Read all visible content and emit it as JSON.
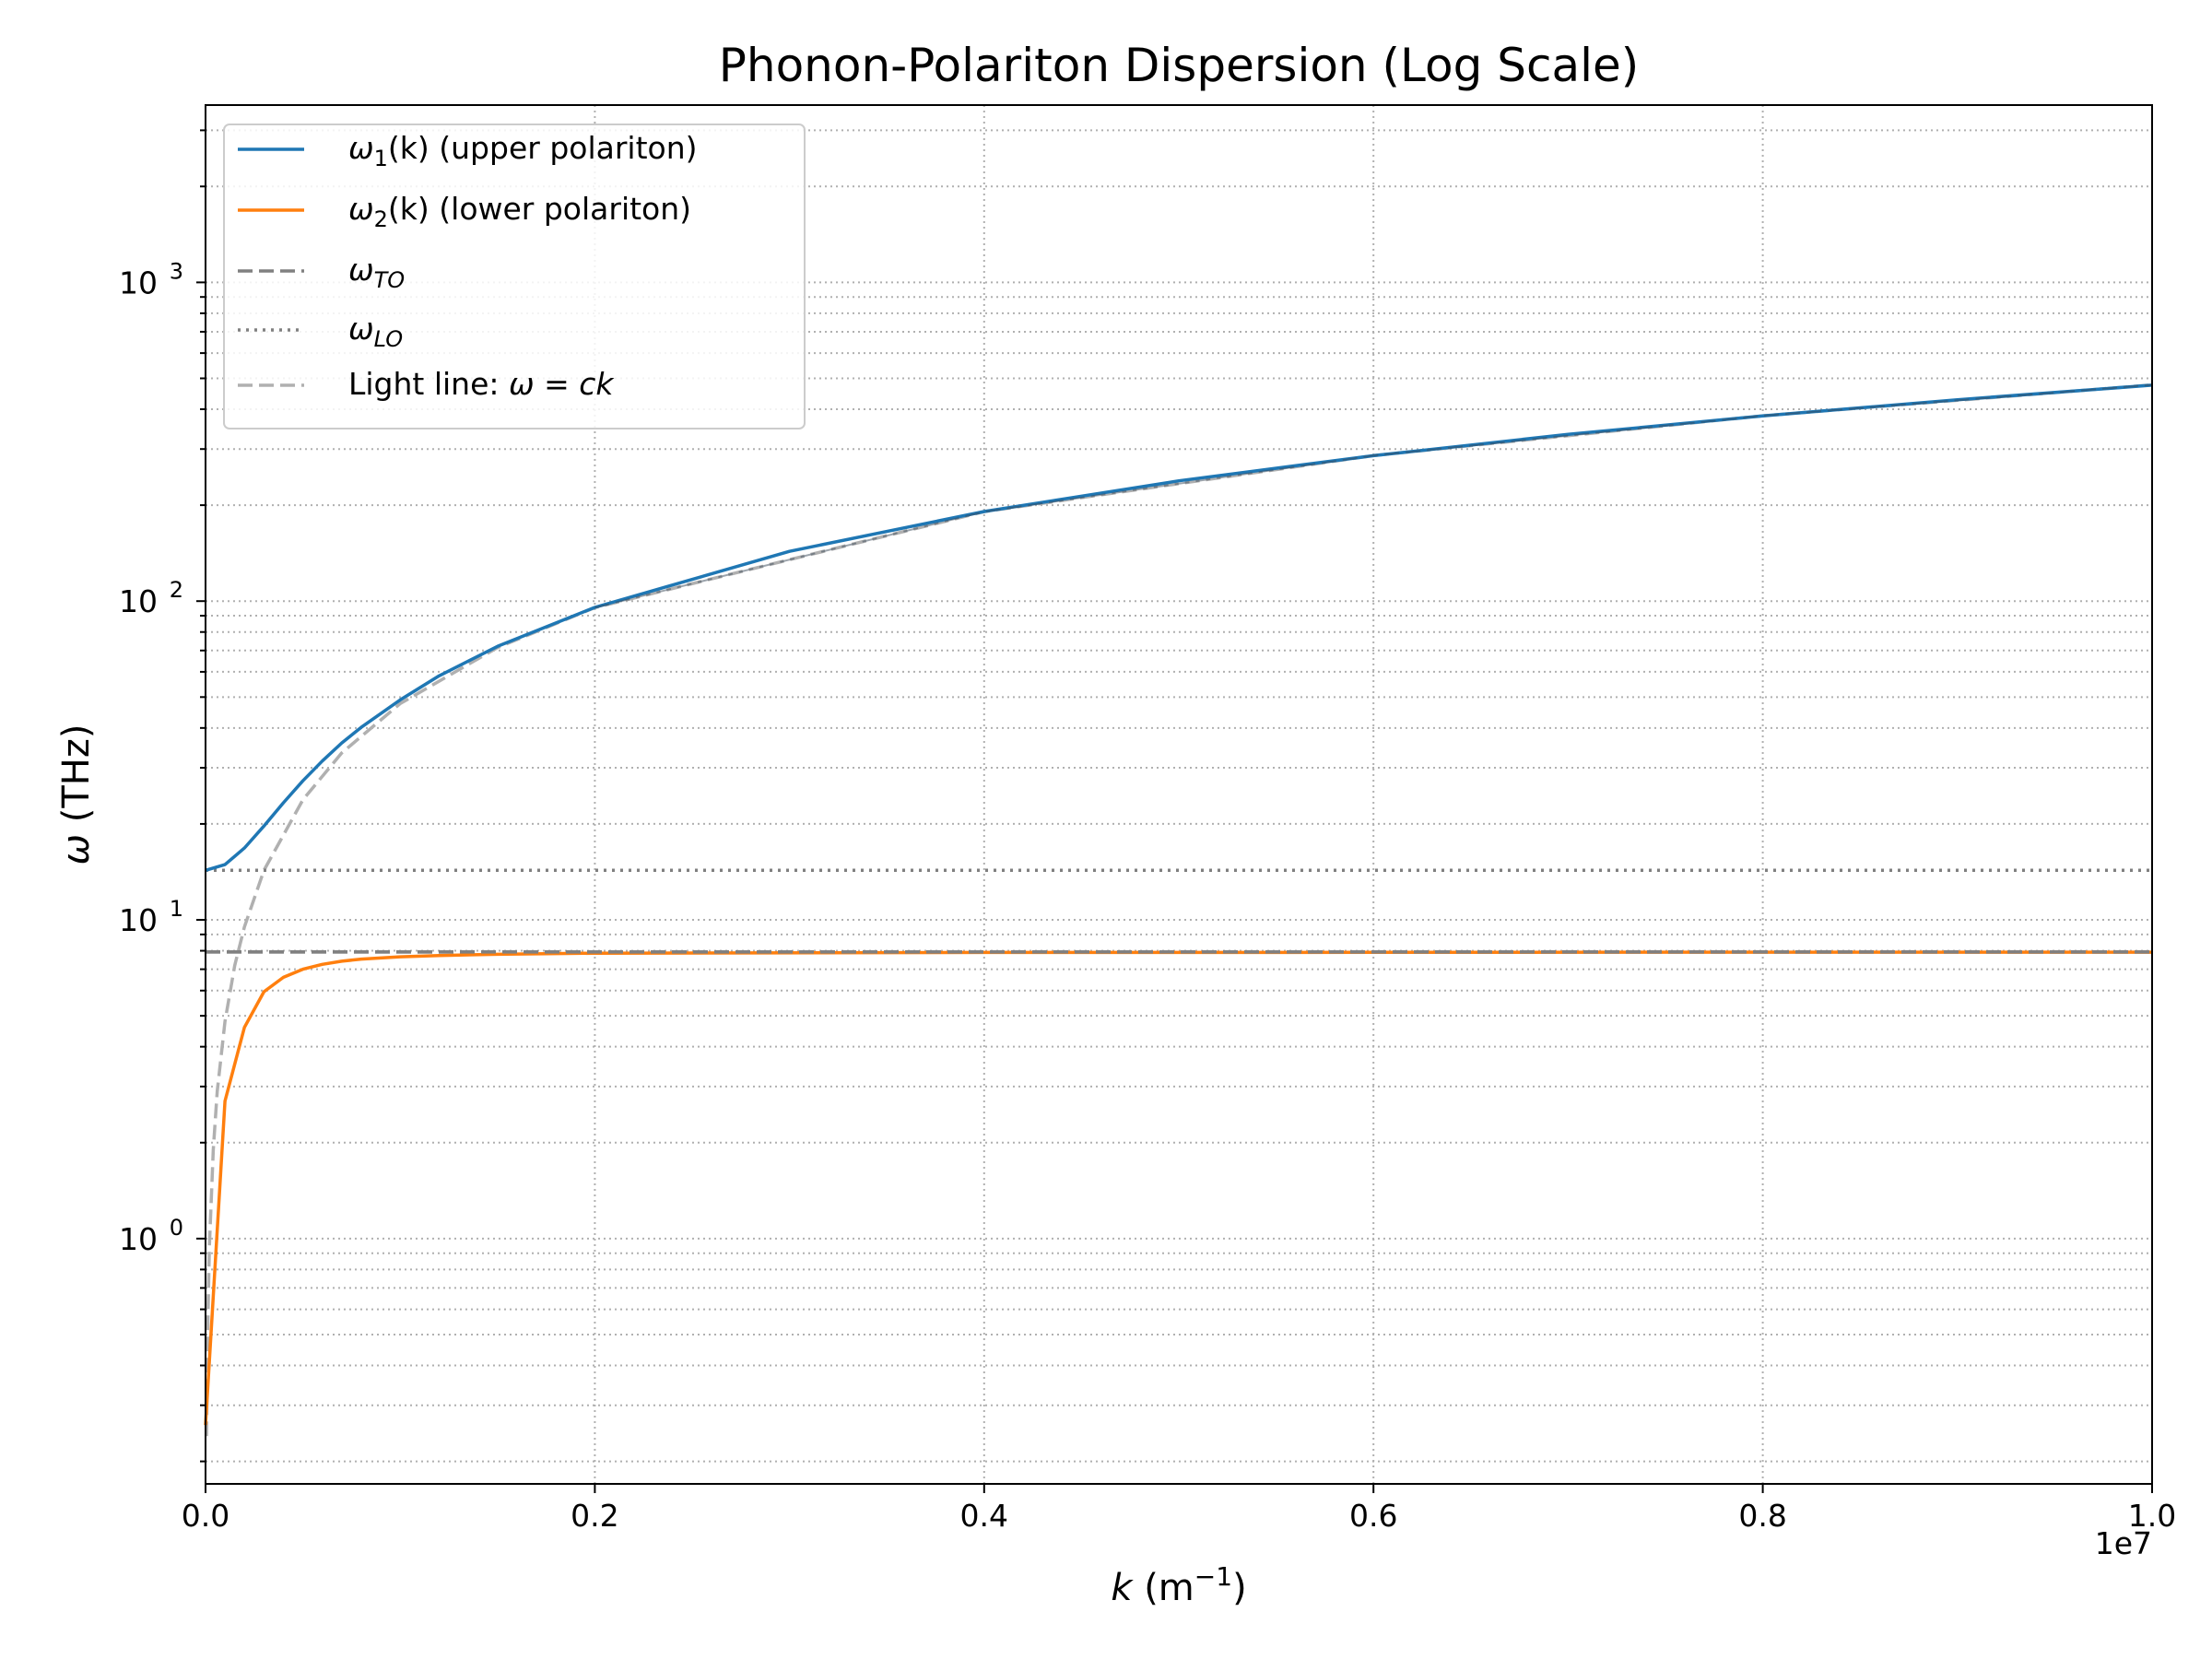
{
  "chart_data": {
    "type": "line",
    "title": "Phonon-Polariton Dispersion (Log Scale)",
    "xlabel": {
      "symbol": "k",
      "text": " (m",
      "exp": "−1",
      "close": ")"
    },
    "ylabel": {
      "symbol": "ω",
      "text": " (THz)"
    },
    "x_multiplier": "1e7",
    "xscale": "linear",
    "yscale": "log",
    "xlim": [
      0,
      10000000
    ],
    "ylim": [
      0.17,
      3600
    ],
    "grid": {
      "enabled": true,
      "style": "dotted",
      "minor": true
    },
    "legend_position": "upper-left",
    "xticks": [
      {
        "value": 0,
        "label": "0.0"
      },
      {
        "value": 2000000,
        "label": "0.2"
      },
      {
        "value": 4000000,
        "label": "0.4"
      },
      {
        "value": 6000000,
        "label": "0.6"
      },
      {
        "value": 8000000,
        "label": "0.8"
      },
      {
        "value": 10000000,
        "label": "1.0"
      }
    ],
    "yticks": [
      {
        "value": 1,
        "base": "10",
        "exp": "0"
      },
      {
        "value": 10,
        "base": "10",
        "exp": "1"
      },
      {
        "value": 100,
        "base": "10",
        "exp": "2"
      },
      {
        "value": 1000,
        "base": "10",
        "exp": "3"
      }
    ],
    "series": [
      {
        "name": "ω₁(k) (upper polariton)",
        "legend": {
          "sym": "ω",
          "sub": "1",
          "rest": "(k) (upper polariton)"
        },
        "color": "#1f77b4",
        "style": "solid",
        "x": [
          0,
          100000,
          200000,
          300000,
          400000,
          500000,
          600000,
          700000,
          800000,
          1000000,
          1200000,
          1500000,
          2000000,
          3000000,
          4000000,
          5000000,
          6000000,
          7000000,
          8000000,
          9000000,
          10000000
        ],
        "y": [
          14.3,
          14.9,
          16.8,
          19.7,
          23.3,
          27.3,
          31.5,
          35.9,
          40.2,
          49.0,
          58.3,
          72.1,
          95.6,
          143.3,
          191.0,
          238.5,
          286.0,
          333.5,
          381.0,
          428.5,
          476.0
        ]
      },
      {
        "name": "ω₂(k) (lower polariton)",
        "legend": {
          "sym": "ω",
          "sub": "2",
          "rest": "(k) (lower polariton)"
        },
        "color": "#ff7f0e",
        "style": "solid",
        "x": [
          0,
          100000,
          200000,
          300000,
          400000,
          500000,
          600000,
          700000,
          800000,
          1000000,
          1200000,
          1500000,
          2000000,
          4000000,
          6000000,
          8000000,
          10000000
        ],
        "y": [
          0.26,
          2.7,
          4.6,
          5.95,
          6.6,
          7.0,
          7.25,
          7.42,
          7.53,
          7.66,
          7.73,
          7.8,
          7.86,
          7.9,
          7.91,
          7.92,
          7.92
        ]
      },
      {
        "name": "ωTO",
        "legend": {
          "sym": "ω",
          "sub": "TO",
          "rest": ""
        },
        "color": "#808080",
        "style": "dashed",
        "x": [
          0,
          10000000
        ],
        "y": [
          7.93,
          7.93
        ]
      },
      {
        "name": "ωLO",
        "legend": {
          "sym": "ω",
          "sub": "LO",
          "rest": ""
        },
        "color": "#808080",
        "style": "dotted",
        "x": [
          0,
          10000000
        ],
        "y": [
          14.3,
          14.3
        ]
      },
      {
        "name": "Light line: ω = ck",
        "legend": {
          "sym": "",
          "sub": "",
          "rest": "",
          "text": "Light line: ",
          "math": "ω = ck"
        },
        "color": "#b0b0b0",
        "style": "dashed",
        "x": [
          5000,
          10000,
          20000,
          40000,
          60000,
          100000,
          150000,
          200000,
          300000,
          500000,
          700000,
          1000000,
          1500000,
          2000000,
          4000000,
          6000000,
          8000000,
          10000000
        ],
        "y": [
          0.24,
          0.48,
          0.95,
          1.9,
          2.9,
          4.8,
          7.2,
          9.5,
          14.3,
          23.8,
          33.4,
          47.7,
          71.5,
          95.4,
          190.8,
          286.2,
          381.6,
          477.0
        ]
      }
    ]
  }
}
